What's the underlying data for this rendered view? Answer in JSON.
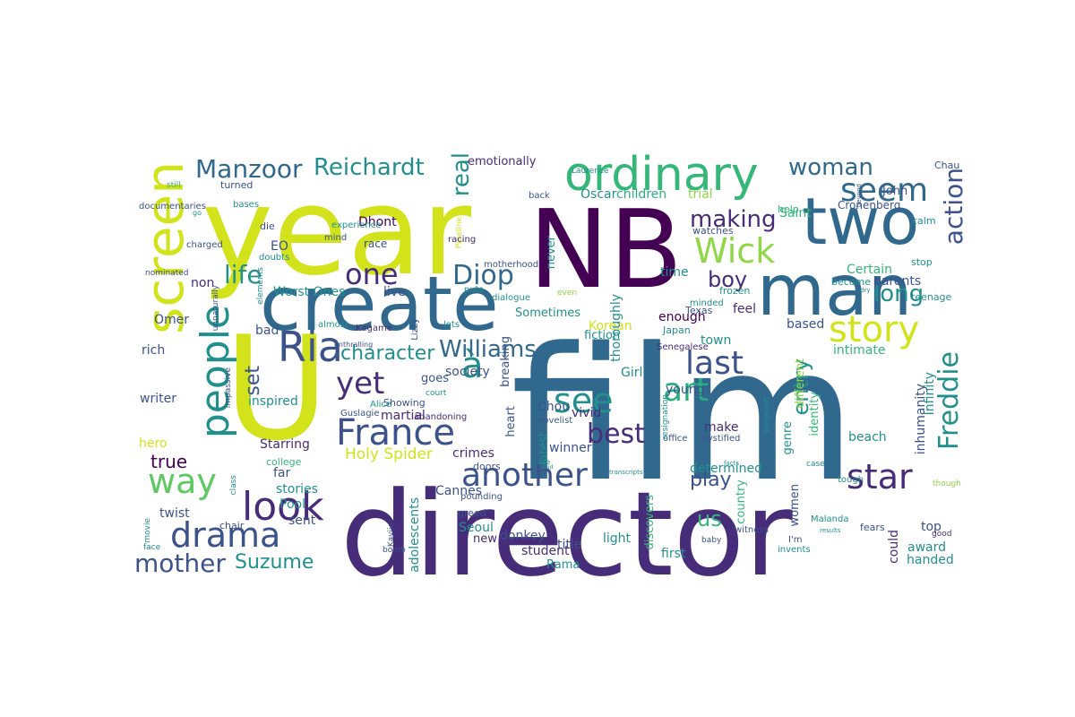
{
  "palette": {
    "purple": "#472c7a",
    "blue": "#30688e",
    "teal": "#21908d",
    "green": "#35b779",
    "lime": "#8fd744",
    "yellow": "#d2e21b",
    "indigo": "#3b528b",
    "violet": "#440154",
    "seafoam": "#29af7f",
    "grassy": "#5ec962"
  },
  "words": [
    {
      "text": "film",
      "color": "blue"
    },
    {
      "text": "director",
      "color": "purple"
    },
    {
      "text": "year",
      "color": "yellow"
    },
    {
      "text": "NB",
      "color": "violet"
    },
    {
      "text": "man",
      "color": "blue"
    },
    {
      "text": "two",
      "color": "blue"
    },
    {
      "text": "create",
      "color": "blue"
    },
    {
      "text": "screen",
      "color": "yellow"
    },
    {
      "text": "U",
      "color": "yellow"
    },
    {
      "text": "ordinary",
      "color": "green"
    },
    {
      "text": "Ria",
      "color": "indigo"
    },
    {
      "text": "people",
      "color": "teal"
    },
    {
      "text": "à",
      "color": "teal"
    },
    {
      "text": "way",
      "color": "grassy"
    },
    {
      "text": "look",
      "color": "purple"
    },
    {
      "text": "drama",
      "color": "indigo"
    },
    {
      "text": "France",
      "color": "indigo"
    },
    {
      "text": "another",
      "color": "indigo"
    },
    {
      "text": "star",
      "color": "purple"
    },
    {
      "text": "story",
      "color": "yellow"
    },
    {
      "text": "Wick",
      "color": "lime"
    },
    {
      "text": "seem",
      "color": "blue"
    },
    {
      "text": "see",
      "color": "teal"
    },
    {
      "text": "art",
      "color": "seafoam"
    },
    {
      "text": "last",
      "color": "indigo"
    },
    {
      "text": "yet",
      "color": "purple"
    },
    {
      "text": "one",
      "color": "purple"
    },
    {
      "text": "Diop",
      "color": "blue"
    },
    {
      "text": "best",
      "color": "purple"
    },
    {
      "text": "entry",
      "color": "teal"
    },
    {
      "text": "Freddie",
      "color": "teal"
    },
    {
      "text": "action",
      "color": "indigo"
    },
    {
      "text": "Manzoor",
      "color": "blue"
    },
    {
      "text": "Reichardt",
      "color": "teal"
    },
    {
      "text": "woman",
      "color": "blue"
    },
    {
      "text": "life",
      "color": "teal"
    },
    {
      "text": "making",
      "color": "purple"
    },
    {
      "text": "character",
      "color": "teal"
    },
    {
      "text": "Williams",
      "color": "blue"
    },
    {
      "text": "mother",
      "color": "indigo"
    },
    {
      "text": "Suzume",
      "color": "teal"
    },
    {
      "text": "real",
      "color": "teal"
    },
    {
      "text": "play",
      "color": "indigo"
    },
    {
      "text": "long",
      "color": "teal"
    },
    {
      "text": "boy",
      "color": "purple"
    },
    {
      "text": "true",
      "color": "violet"
    },
    {
      "text": "set",
      "color": "indigo"
    },
    {
      "text": "us",
      "color": "green"
    },
    {
      "text": "Holy Spider",
      "color": "yellow"
    },
    {
      "text": "Worst Ones",
      "color": "teal"
    },
    {
      "text": "live",
      "color": "indigo"
    },
    {
      "text": "Starring",
      "color": "purple"
    },
    {
      "text": "crimes",
      "color": "purple"
    },
    {
      "text": "emotionally",
      "color": "purple"
    },
    {
      "text": "John",
      "color": "indigo"
    },
    {
      "text": "Oscar",
      "color": "teal"
    },
    {
      "text": "children",
      "color": "seafoam"
    },
    {
      "text": "trial",
      "color": "lime"
    },
    {
      "text": "Saint",
      "color": "green"
    },
    {
      "text": "Dhont",
      "color": "violet"
    },
    {
      "text": "Certain",
      "color": "green"
    },
    {
      "text": "parents",
      "color": "indigo"
    },
    {
      "text": "time",
      "color": "teal"
    },
    {
      "text": "EO",
      "color": "indigo"
    },
    {
      "text": "non",
      "color": "purple"
    },
    {
      "text": "Omer",
      "color": "indigo"
    },
    {
      "text": "rich",
      "color": "indigo"
    },
    {
      "text": "bad",
      "color": "indigo"
    },
    {
      "text": "enough",
      "color": "violet"
    },
    {
      "text": "feel",
      "color": "purple"
    },
    {
      "text": "Korean",
      "color": "yellow"
    },
    {
      "text": "town",
      "color": "teal"
    },
    {
      "text": "intimate",
      "color": "green"
    },
    {
      "text": "based",
      "color": "indigo"
    },
    {
      "text": "writer",
      "color": "indigo"
    },
    {
      "text": "inspired",
      "color": "teal"
    },
    {
      "text": "goes",
      "color": "indigo"
    },
    {
      "text": "society",
      "color": "indigo"
    },
    {
      "text": "Chou",
      "color": "indigo"
    },
    {
      "text": "vivid",
      "color": "purple"
    },
    {
      "text": "Girl",
      "color": "teal"
    },
    {
      "text": "young",
      "color": "indigo"
    },
    {
      "text": "martial",
      "color": "purple"
    },
    {
      "text": "hero",
      "color": "yellow"
    },
    {
      "text": "far",
      "color": "indigo"
    },
    {
      "text": "stories",
      "color": "teal"
    },
    {
      "text": "twist",
      "color": "indigo"
    },
    {
      "text": "Pool",
      "color": "teal"
    },
    {
      "text": "sent",
      "color": "indigo"
    },
    {
      "text": "Cannes",
      "color": "indigo"
    },
    {
      "text": "adolescents",
      "color": "teal"
    },
    {
      "text": "Seoul",
      "color": "teal"
    },
    {
      "text": "new",
      "color": "purple"
    },
    {
      "text": "donkey",
      "color": "indigo"
    },
    {
      "text": "title",
      "color": "indigo"
    },
    {
      "text": "student",
      "color": "purple"
    },
    {
      "text": "light",
      "color": "teal"
    },
    {
      "text": "first",
      "color": "teal"
    },
    {
      "text": "Rama",
      "color": "teal"
    },
    {
      "text": "determined",
      "color": "teal"
    },
    {
      "text": "make",
      "color": "purple"
    },
    {
      "text": "country",
      "color": "green"
    },
    {
      "text": "discovers",
      "color": "green"
    },
    {
      "text": "winner",
      "color": "indigo"
    },
    {
      "text": "latest",
      "color": "teal"
    },
    {
      "text": "fiction",
      "color": "teal"
    },
    {
      "text": "breaking",
      "color": "indigo"
    },
    {
      "text": "never",
      "color": "teal"
    },
    {
      "text": "thoroughly",
      "color": "teal"
    },
    {
      "text": "Sometimes",
      "color": "teal"
    },
    {
      "text": "heart",
      "color": "indigo"
    },
    {
      "text": "identity",
      "color": "green"
    },
    {
      "text": "genre",
      "color": "teal"
    },
    {
      "text": "different",
      "color": "lime"
    },
    {
      "text": "beach",
      "color": "teal"
    },
    {
      "text": "inhumanity",
      "color": "indigo"
    },
    {
      "text": "Infinity",
      "color": "teal"
    },
    {
      "text": "award",
      "color": "teal"
    },
    {
      "text": "handed",
      "color": "teal"
    },
    {
      "text": "top",
      "color": "indigo"
    },
    {
      "text": "could",
      "color": "purple"
    },
    {
      "text": "women",
      "color": "indigo"
    },
    {
      "text": "Cronenberg",
      "color": "indigo"
    },
    {
      "text": "Chau",
      "color": "indigo"
    },
    {
      "text": "calm",
      "color": "teal"
    },
    {
      "text": "stop",
      "color": "teal"
    },
    {
      "text": "become",
      "color": "teal"
    },
    {
      "text": "teenage",
      "color": "teal"
    },
    {
      "text": "help",
      "color": "green"
    },
    {
      "text": "watches",
      "color": "indigo"
    },
    {
      "text": "frozen",
      "color": "teal"
    },
    {
      "text": "Texas",
      "color": "indigo"
    },
    {
      "text": "Japan",
      "color": "teal"
    },
    {
      "text": "Senegalese",
      "color": "purple"
    },
    {
      "text": "minded",
      "color": "teal"
    },
    {
      "text": "office",
      "color": "indigo"
    },
    {
      "text": "mystified",
      "color": "indigo"
    },
    {
      "text": "resignation",
      "color": "teal"
    },
    {
      "text": "pregnant",
      "color": "teal"
    },
    {
      "text": "novelist",
      "color": "indigo"
    },
    {
      "text": "abandoning",
      "color": "purple"
    },
    {
      "text": "Showing",
      "color": "indigo"
    },
    {
      "text": "Alice",
      "color": "teal"
    },
    {
      "text": "court",
      "color": "teal"
    },
    {
      "text": "Guslagie",
      "color": "indigo"
    },
    {
      "text": "Kagame",
      "color": "purple"
    },
    {
      "text": "lets",
      "color": "teal"
    },
    {
      "text": "almost",
      "color": "teal"
    },
    {
      "text": "Lizzy",
      "color": "indigo"
    },
    {
      "text": "enthralling",
      "color": "indigo"
    },
    {
      "text": "dialogue",
      "color": "teal"
    },
    {
      "text": "puts",
      "color": "teal"
    },
    {
      "text": "motherhood",
      "color": "indigo"
    },
    {
      "text": "even",
      "color": "lime"
    },
    {
      "text": "Pipeline",
      "color": "yellow"
    },
    {
      "text": "racing",
      "color": "purple"
    },
    {
      "text": "back",
      "color": "indigo"
    },
    {
      "text": "Laurence",
      "color": "teal"
    },
    {
      "text": "experience",
      "color": "teal"
    },
    {
      "text": "race",
      "color": "indigo"
    },
    {
      "text": "mind",
      "color": "indigo"
    },
    {
      "text": "doubts",
      "color": "teal"
    },
    {
      "text": "die",
      "color": "indigo"
    },
    {
      "text": "elements",
      "color": "teal"
    },
    {
      "text": "documentaries",
      "color": "indigo"
    },
    {
      "text": "bases",
      "color": "teal"
    },
    {
      "text": "turned",
      "color": "indigo"
    },
    {
      "text": "still",
      "color": "green"
    },
    {
      "text": "charged",
      "color": "indigo"
    },
    {
      "text": "nominated",
      "color": "indigo"
    },
    {
      "text": "unnaturally",
      "color": "indigo"
    },
    {
      "text": "impassive",
      "color": "indigo"
    },
    {
      "text": "college",
      "color": "green"
    },
    {
      "text": "chair",
      "color": "indigo"
    },
    {
      "text": "class",
      "color": "teal"
    },
    {
      "text": "movie",
      "color": "teal"
    },
    {
      "text": "face",
      "color": "teal"
    },
    {
      "text": "Kayije",
      "color": "indigo"
    },
    {
      "text": "bomb",
      "color": "indigo"
    },
    {
      "text": "greed",
      "color": "indigo"
    },
    {
      "text": "pounding",
      "color": "indigo"
    },
    {
      "text": "doors",
      "color": "indigo"
    },
    {
      "text": "use",
      "color": "teal"
    },
    {
      "text": "baby",
      "color": "indigo"
    },
    {
      "text": "witness",
      "color": "indigo"
    },
    {
      "text": "I'm",
      "color": "indigo"
    },
    {
      "text": "invents",
      "color": "teal"
    },
    {
      "text": "Malanda",
      "color": "teal"
    },
    {
      "text": "fears",
      "color": "indigo"
    },
    {
      "text": "though",
      "color": "lime"
    },
    {
      "text": "good",
      "color": "purple"
    },
    {
      "text": "tough",
      "color": "teal"
    },
    {
      "text": "beyond",
      "color": "indigo"
    },
    {
      "text": "dry",
      "color": "teal"
    },
    {
      "text": "go",
      "color": "teal"
    },
    {
      "text": "case",
      "color": "teal"
    },
    {
      "text": "transcripts",
      "color": "teal"
    },
    {
      "text": "facts",
      "color": "teal"
    },
    {
      "text": "results",
      "color": "teal"
    },
    {
      "text": "said",
      "color": "teal"
    }
  ]
}
